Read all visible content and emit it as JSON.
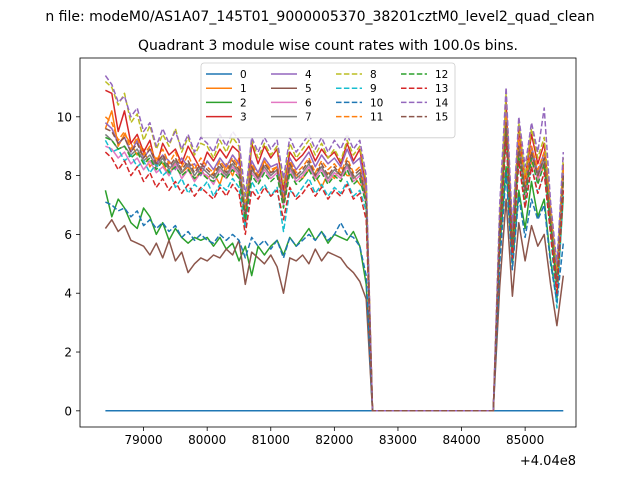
{
  "figure": {
    "suptitle": "n file: modeM0/AS1A07_145T01_9000005370_38201cztM0_level2_quad_clean",
    "offset_label": "+4.04e8"
  },
  "chart_data": {
    "type": "line",
    "title": "Quadrant 3 module wise count rates with 100.0s bins.",
    "xlabel": "",
    "ylabel": "",
    "xlim": [
      78000,
      85800
    ],
    "ylim": [
      -0.55,
      12.0
    ],
    "x_ticks": [
      79000,
      80000,
      81000,
      82000,
      83000,
      84000,
      85000
    ],
    "y_ticks": [
      0,
      2,
      4,
      6,
      8,
      10
    ],
    "grid": false,
    "legend": {
      "placement": "top-center",
      "columns": 4
    },
    "segments": [
      [
        78400,
        82500
      ],
      [
        84600,
        85600
      ]
    ],
    "segment_x": [
      [
        78400,
        78500,
        78600,
        78700,
        78800,
        78900,
        79000,
        79100,
        79200,
        79300,
        79400,
        79500,
        79600,
        79700,
        79800,
        79900,
        80000,
        80100,
        80200,
        80300,
        80400,
        80500,
        80600,
        80700,
        80800,
        80900,
        81000,
        81100,
        81200,
        81300,
        81400,
        81500,
        81600,
        81700,
        81800,
        81900,
        82000,
        82100,
        82200,
        82300,
        82400,
        82500
      ],
      [
        84600,
        84700,
        84800,
        84900,
        85000,
        85100,
        85200,
        85300,
        85400,
        85500,
        85600
      ]
    ],
    "gap": {
      "start": 82600,
      "end": 84500,
      "value": 0
    },
    "series": [
      {
        "name": "0",
        "color": "#1f77b4",
        "dash": false,
        "seg1": [
          0,
          0,
          0,
          0,
          0,
          0,
          0,
          0,
          0,
          0,
          0,
          0,
          0,
          0,
          0,
          0,
          0,
          0,
          0,
          0,
          0,
          0,
          0,
          0,
          0,
          0,
          0,
          0,
          0,
          0,
          0,
          0,
          0,
          0,
          0,
          0,
          0,
          0,
          0,
          0,
          0,
          0
        ],
        "seg2": [
          0,
          0,
          0,
          0,
          0,
          0,
          0,
          0,
          0,
          0,
          0
        ]
      },
      {
        "name": "1",
        "color": "#ff7f0e",
        "dash": false,
        "seg1": [
          9.6,
          10.2,
          9.0,
          9.4,
          9.1,
          8.7,
          8.9,
          8.3,
          8.6,
          8.4,
          8.0,
          8.5,
          8.1,
          8.3,
          7.8,
          8.2,
          7.9,
          8.1,
          7.7,
          8.4,
          8.0,
          8.6,
          6.5,
          8.3,
          7.9,
          8.5,
          8.1,
          8.3,
          7.2,
          8.4,
          8.0,
          7.9,
          8.2,
          8.0,
          7.6,
          8.1,
          7.9,
          8.3,
          8.0,
          8.0,
          7.7,
          7.5
        ],
        "seg2": [
          6.0,
          9.5,
          5.5,
          8.8,
          7.4,
          8.5,
          7.9,
          8.3,
          6.3,
          4.2,
          7.8
        ]
      },
      {
        "name": "2",
        "color": "#2ca02c",
        "dash": false,
        "seg1": [
          7.5,
          6.6,
          7.2,
          6.9,
          6.4,
          6.2,
          6.9,
          6.6,
          6.0,
          6.4,
          5.8,
          6.2,
          5.9,
          5.7,
          5.9,
          5.8,
          5.9,
          5.6,
          5.9,
          5.5,
          5.7,
          5.1,
          5.6,
          4.6,
          5.6,
          5.3,
          5.6,
          5.8,
          5.3,
          5.9,
          5.6,
          5.9,
          6.2,
          5.8,
          6.1,
          5.7,
          6.0,
          5.9,
          5.8,
          6.1,
          5.6,
          4.3
        ],
        "seg2": [
          5.5,
          8.3,
          5.0,
          7.5,
          6.2,
          7.8,
          6.6,
          7.2,
          5.1,
          3.8,
          7.3
        ]
      },
      {
        "name": "3",
        "color": "#d62728",
        "dash": false,
        "seg1": [
          10.9,
          10.8,
          9.5,
          10.2,
          9.1,
          9.4,
          8.8,
          9.2,
          8.3,
          9.1,
          8.7,
          8.9,
          8.4,
          9.0,
          8.6,
          8.2,
          8.8,
          8.5,
          8.9,
          8.6,
          9.0,
          8.8,
          6.3,
          9.1,
          8.4,
          9.0,
          8.6,
          8.9,
          7.5,
          8.8,
          8.5,
          8.7,
          9.0,
          8.5,
          8.9,
          8.6,
          8.8,
          8.4,
          9.1,
          8.5,
          8.9,
          7.6
        ],
        "seg2": [
          6.4,
          10.5,
          5.9,
          9.6,
          7.9,
          9.4,
          8.4,
          9.1,
          6.8,
          4.6,
          8.4
        ]
      },
      {
        "name": "4",
        "color": "#9467bd",
        "dash": false,
        "seg1": [
          9.8,
          9.6,
          9.1,
          9.3,
          8.8,
          9.2,
          8.6,
          8.9,
          8.4,
          8.7,
          8.5,
          8.2,
          8.6,
          8.3,
          8.4,
          8.0,
          8.5,
          8.2,
          8.6,
          8.3,
          8.7,
          8.4,
          6.9,
          8.5,
          8.1,
          8.6,
          8.3,
          8.4,
          7.3,
          8.6,
          8.2,
          8.5,
          8.8,
          8.3,
          8.7,
          8.4,
          8.6,
          8.3,
          8.9,
          8.4,
          8.6,
          7.4
        ],
        "seg2": [
          6.3,
          10.1,
          5.7,
          9.2,
          7.6,
          9.0,
          8.1,
          8.8,
          6.6,
          4.4,
          8.1
        ]
      },
      {
        "name": "5",
        "color": "#8c564b",
        "dash": false,
        "seg1": [
          6.2,
          6.5,
          6.1,
          6.3,
          5.8,
          5.7,
          5.6,
          5.3,
          5.7,
          5.2,
          5.8,
          5.1,
          5.4,
          4.7,
          5.0,
          5.2,
          5.1,
          5.3,
          5.2,
          5.5,
          5.3,
          5.8,
          4.3,
          5.4,
          5.2,
          5.0,
          5.3,
          4.9,
          4.0,
          5.2,
          5.1,
          5.3,
          5.0,
          5.5,
          5.1,
          5.4,
          5.3,
          5.2,
          4.9,
          4.7,
          4.4,
          3.8
        ],
        "seg2": [
          4.2,
          7.2,
          3.9,
          6.4,
          5.1,
          6.3,
          5.6,
          6.0,
          4.3,
          2.9,
          4.6
        ]
      },
      {
        "name": "6",
        "color": "#e377c2",
        "dash": false,
        "seg1": [
          9.0,
          8.9,
          8.6,
          8.8,
          8.4,
          8.6,
          8.2,
          8.5,
          8.1,
          8.3,
          8.0,
          8.4,
          7.9,
          8.2,
          7.8,
          8.1,
          8.0,
          7.7,
          8.2,
          7.9,
          8.3,
          8.0,
          6.6,
          8.1,
          7.8,
          8.2,
          7.9,
          8.1,
          7.0,
          8.2,
          7.8,
          8.0,
          8.3,
          7.9,
          8.2,
          7.8,
          8.1,
          7.9,
          8.3,
          7.8,
          8.0,
          7.0
        ],
        "seg2": [
          6.1,
          9.7,
          5.4,
          8.9,
          7.3,
          8.7,
          7.8,
          8.5,
          6.4,
          4.3,
          7.9
        ]
      },
      {
        "name": "7",
        "color": "#7f7f7f",
        "dash": false,
        "seg1": [
          9.4,
          9.2,
          8.9,
          9.0,
          8.7,
          8.9,
          8.5,
          8.7,
          8.3,
          8.6,
          8.2,
          8.5,
          8.1,
          8.4,
          8.0,
          8.3,
          8.1,
          7.9,
          8.3,
          8.0,
          8.4,
          8.1,
          6.7,
          8.2,
          7.9,
          8.3,
          8.0,
          8.2,
          7.1,
          8.3,
          7.9,
          8.1,
          8.4,
          8.0,
          8.3,
          7.9,
          8.2,
          8.0,
          8.4,
          7.9,
          8.1,
          7.2
        ],
        "seg2": [
          6.2,
          9.9,
          5.6,
          9.0,
          7.5,
          8.8,
          8.0,
          8.6,
          6.5,
          4.4,
          8.0
        ]
      },
      {
        "name": "8",
        "color": "#bcbd22",
        "dash": true,
        "seg1": [
          11.2,
          11.0,
          10.4,
          10.8,
          9.8,
          10.1,
          9.2,
          9.7,
          8.9,
          9.4,
          9.0,
          9.6,
          8.8,
          9.3,
          8.7,
          9.1,
          9.0,
          8.6,
          9.2,
          8.8,
          9.3,
          9.0,
          7.1,
          9.2,
          8.6,
          9.1,
          8.7,
          9.0,
          7.7,
          9.1,
          8.6,
          8.9,
          9.2,
          8.7,
          9.1,
          8.6,
          8.9,
          8.5,
          9.2,
          8.7,
          9.0,
          7.8
        ],
        "seg2": [
          6.6,
          10.8,
          6.1,
          9.8,
          8.0,
          9.6,
          8.6,
          9.3,
          7.0,
          4.8,
          8.6
        ]
      },
      {
        "name": "9",
        "color": "#17becf",
        "dash": true,
        "seg1": [
          9.2,
          8.8,
          8.9,
          8.5,
          8.7,
          8.3,
          8.5,
          8.1,
          8.4,
          8.0,
          8.2,
          7.6,
          7.9,
          7.4,
          7.7,
          7.5,
          7.8,
          7.3,
          7.7,
          7.5,
          7.9,
          7.6,
          6.2,
          7.8,
          7.4,
          7.7,
          7.3,
          7.6,
          6.1,
          7.5,
          7.3,
          7.6,
          7.9,
          7.4,
          7.7,
          7.3,
          7.6,
          7.4,
          7.8,
          7.3,
          7.5,
          6.8
        ],
        "seg2": [
          5.8,
          9.3,
          5.2,
          8.5,
          6.9,
          8.3,
          7.4,
          8.1,
          6.0,
          3.5,
          7.5
        ]
      },
      {
        "name": "10",
        "color": "#1f77b4",
        "dash": true,
        "seg1": [
          7.1,
          7.0,
          6.8,
          6.9,
          6.6,
          6.8,
          6.3,
          6.5,
          6.2,
          6.4,
          6.1,
          6.3,
          5.9,
          6.1,
          5.8,
          6.0,
          5.8,
          5.7,
          6.0,
          5.8,
          6.0,
          5.8,
          5.2,
          5.9,
          5.6,
          5.8,
          5.5,
          5.8,
          5.2,
          5.9,
          5.6,
          5.8,
          6.0,
          5.8,
          6.1,
          5.8,
          6.0,
          6.4,
          6.0,
          5.9,
          5.6,
          4.6
        ],
        "seg2": [
          5.0,
          8.1,
          4.8,
          7.3,
          5.9,
          7.2,
          6.5,
          7.0,
          5.0,
          3.7,
          5.7
        ]
      },
      {
        "name": "11",
        "color": "#ff7f0e",
        "dash": true,
        "seg1": [
          10.0,
          9.8,
          9.2,
          9.5,
          8.9,
          9.3,
          8.7,
          9.0,
          8.5,
          8.9,
          8.4,
          8.8,
          8.3,
          8.7,
          8.2,
          8.6,
          8.3,
          8.1,
          8.5,
          8.2,
          8.6,
          8.3,
          6.8,
          8.4,
          8.0,
          8.5,
          8.2,
          8.3,
          7.2,
          8.5,
          8.1,
          8.3,
          8.6,
          8.1,
          8.5,
          8.2,
          8.4,
          8.1,
          8.6,
          8.1,
          8.3,
          7.3
        ],
        "seg2": [
          6.4,
          10.0,
          5.8,
          9.2,
          7.7,
          9.0,
          8.2,
          8.8,
          6.7,
          4.5,
          8.2
        ]
      },
      {
        "name": "12",
        "color": "#2ca02c",
        "dash": true,
        "seg1": [
          9.3,
          9.2,
          8.9,
          9.0,
          8.6,
          8.8,
          8.4,
          8.6,
          8.2,
          8.5,
          8.1,
          8.3,
          8.0,
          8.2,
          7.9,
          8.1,
          7.9,
          7.8,
          8.1,
          7.9,
          8.2,
          7.9,
          6.5,
          8.0,
          7.7,
          8.1,
          7.8,
          8.0,
          6.9,
          8.1,
          7.7,
          7.9,
          8.2,
          7.8,
          8.1,
          7.7,
          8.0,
          7.8,
          8.2,
          7.7,
          7.9,
          7.0
        ],
        "seg2": [
          6.0,
          9.6,
          5.5,
          8.8,
          7.2,
          8.6,
          7.7,
          8.4,
          6.3,
          4.2,
          7.8
        ]
      },
      {
        "name": "13",
        "color": "#d62728",
        "dash": true,
        "seg1": [
          8.8,
          8.6,
          8.2,
          8.5,
          8.0,
          8.3,
          7.8,
          8.1,
          7.6,
          7.9,
          7.5,
          7.8,
          7.4,
          7.7,
          7.3,
          7.6,
          7.4,
          7.2,
          7.6,
          7.3,
          7.7,
          7.4,
          6.0,
          7.5,
          7.2,
          7.6,
          7.3,
          7.5,
          6.5,
          7.6,
          7.2,
          7.4,
          7.7,
          7.3,
          7.6,
          7.2,
          7.5,
          7.3,
          7.7,
          7.2,
          7.4,
          6.5
        ],
        "seg2": [
          5.8,
          9.3,
          5.2,
          8.5,
          6.9,
          8.3,
          7.4,
          8.1,
          6.0,
          4.0,
          7.5
        ]
      },
      {
        "name": "14",
        "color": "#9467bd",
        "dash": true,
        "seg1": [
          11.4,
          11.1,
          10.5,
          10.7,
          10.0,
          10.3,
          9.5,
          9.8,
          9.0,
          9.6,
          9.1,
          9.5,
          8.9,
          9.4,
          8.8,
          9.3,
          9.1,
          8.8,
          9.4,
          9.0,
          9.5,
          9.2,
          7.3,
          9.3,
          8.8,
          9.3,
          8.9,
          9.2,
          7.9,
          9.3,
          8.8,
          9.1,
          9.4,
          8.9,
          9.3,
          8.8,
          9.2,
          8.9,
          9.4,
          8.9,
          9.2,
          8.0
        ],
        "seg2": [
          7.0,
          11.0,
          6.2,
          10.0,
          8.3,
          9.8,
          8.8,
          10.3,
          7.1,
          5.0,
          8.8
        ]
      },
      {
        "name": "15",
        "color": "#8c564b",
        "dash": true,
        "seg1": [
          9.6,
          9.5,
          9.1,
          9.3,
          8.8,
          9.1,
          8.6,
          8.9,
          8.4,
          8.7,
          8.3,
          8.6,
          8.2,
          8.5,
          8.1,
          8.4,
          8.2,
          8.0,
          8.4,
          8.1,
          8.5,
          8.2,
          6.7,
          8.3,
          7.9,
          8.4,
          8.1,
          8.2,
          7.1,
          8.4,
          8.0,
          8.2,
          8.5,
          8.0,
          8.4,
          8.0,
          8.3,
          8.0,
          8.5,
          8.0,
          8.2,
          7.2
        ],
        "seg2": [
          6.2,
          9.8,
          5.6,
          9.0,
          7.5,
          8.8,
          8.0,
          8.6,
          6.5,
          4.4,
          8.0
        ]
      }
    ]
  }
}
